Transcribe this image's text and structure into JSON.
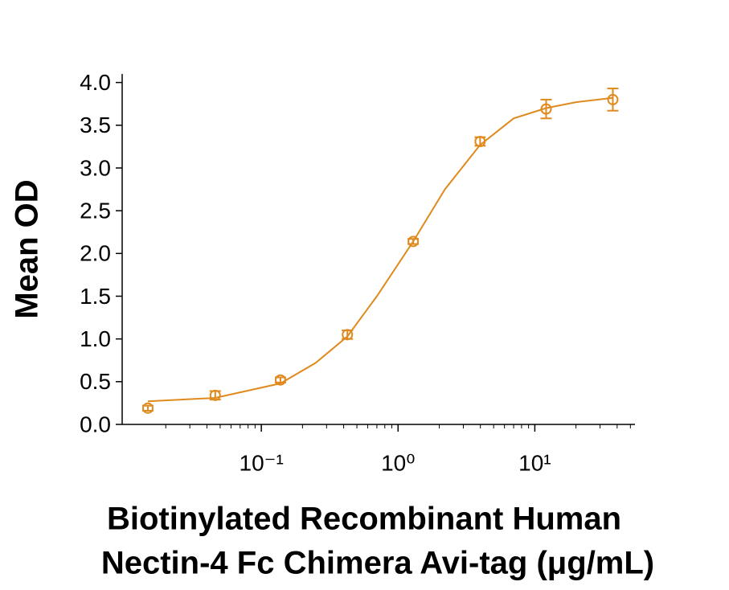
{
  "chart_data": {
    "type": "scatter",
    "ylabel": "Mean OD",
    "xlabel": [
      "Biotinylated Recombinant Human",
      "Nectin-4 Fc Chimera Avi-tag (μg/mL)"
    ],
    "xscale": "log",
    "xlim": [
      0.0096,
      54
    ],
    "ylim": [
      0,
      4.1
    ],
    "xticks": [
      {
        "value": 0.1,
        "label": "10⁻¹"
      },
      {
        "value": 1,
        "label": "10⁰"
      },
      {
        "value": 10,
        "label": "10¹"
      }
    ],
    "xminorticks": [
      0.02,
      0.03,
      0.04,
      0.05,
      0.06,
      0.07,
      0.08,
      0.09,
      0.2,
      0.3,
      0.4,
      0.5,
      0.6,
      0.7,
      0.8,
      0.9,
      2,
      3,
      4,
      5,
      6,
      7,
      8,
      9,
      20,
      30,
      40,
      50
    ],
    "yticks": [
      {
        "value": 0,
        "label": "0.0"
      },
      0.5,
      {
        "value": 1,
        "label": "1.0"
      },
      1.5,
      {
        "value": 2,
        "label": "2.0"
      },
      2.5,
      {
        "value": 3,
        "label": "3.0"
      },
      3.5,
      {
        "value": 4,
        "label": "4.0"
      }
    ],
    "color": "#e08a1e",
    "x": [
      0.0148,
      0.046,
      0.138,
      0.426,
      1.29,
      3.98,
      12.1,
      37.2
    ],
    "values": [
      0.19,
      0.34,
      0.52,
      1.05,
      2.14,
      3.31,
      3.69,
      3.8
    ],
    "errors": [
      0.03,
      0.05,
      0.03,
      0.05,
      0.03,
      0.05,
      0.11,
      0.13
    ],
    "fit": {
      "x": [
        0.0148,
        0.046,
        0.138,
        0.25,
        0.426,
        0.7,
        1.29,
        2.2,
        3.98,
        7,
        12.1,
        20,
        37.2
      ],
      "values": [
        0.27,
        0.31,
        0.48,
        0.72,
        1.03,
        1.5,
        2.14,
        2.75,
        3.27,
        3.58,
        3.7,
        3.77,
        3.82
      ]
    }
  }
}
